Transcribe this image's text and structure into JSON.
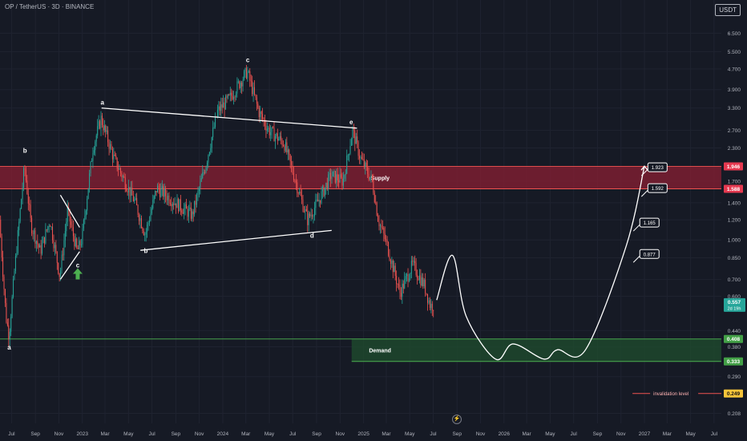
{
  "header": {
    "symbol_line": "OP / TetherUS · 3D · BINANCE"
  },
  "unit_label": "USDT",
  "scroll_icon": "lightning-icon",
  "colors": {
    "background": "#161a25",
    "grid": "#1f2330",
    "up": "#26a69a",
    "down": "#ef5350",
    "supply_fill": "#8a1f33",
    "supply_line": "#ef5350",
    "demand_fill": "#1f4d2e",
    "demand_line": "#4caf50",
    "invalidation": "#ef5350",
    "projection": "#ffffff"
  },
  "chart_data": {
    "type": "candlestick",
    "y_scale": "log",
    "ylim": [
      0.19,
      7.7
    ],
    "xlim": [
      "2022-06-01",
      "2027-07-20"
    ],
    "y_ticks": [
      "6.500",
      "5.500",
      "4.700",
      "3.900",
      "3.300",
      "2.700",
      "2.300",
      "1.700",
      "1.400",
      "1.200",
      "1.000",
      "0.850",
      "0.700",
      "0.600",
      "0.440",
      "0.380",
      "0.290",
      "0.208"
    ],
    "x_ticks": [
      {
        "date": "2022-07-01",
        "label": "Jul"
      },
      {
        "date": "2022-09-01",
        "label": "Sep"
      },
      {
        "date": "2022-11-01",
        "label": "Nov"
      },
      {
        "date": "2023-01-01",
        "label": "2023"
      },
      {
        "date": "2023-03-01",
        "label": "Mar"
      },
      {
        "date": "2023-05-01",
        "label": "May"
      },
      {
        "date": "2023-07-01",
        "label": "Jul"
      },
      {
        "date": "2023-09-01",
        "label": "Sep"
      },
      {
        "date": "2023-11-01",
        "label": "Nov"
      },
      {
        "date": "2024-01-01",
        "label": "2024"
      },
      {
        "date": "2024-03-01",
        "label": "Mar"
      },
      {
        "date": "2024-05-01",
        "label": "May"
      },
      {
        "date": "2024-07-01",
        "label": "Jul"
      },
      {
        "date": "2024-09-01",
        "label": "Sep"
      },
      {
        "date": "2024-11-01",
        "label": "Nov"
      },
      {
        "date": "2025-01-01",
        "label": "2025"
      },
      {
        "date": "2025-03-01",
        "label": "Mar"
      },
      {
        "date": "2025-05-01",
        "label": "May"
      },
      {
        "date": "2025-07-01",
        "label": "Jul"
      },
      {
        "date": "2025-09-01",
        "label": "Sep"
      },
      {
        "date": "2025-11-01",
        "label": "Nov"
      },
      {
        "date": "2026-01-01",
        "label": "2026"
      },
      {
        "date": "2026-03-01",
        "label": "Mar"
      },
      {
        "date": "2026-05-01",
        "label": "May"
      },
      {
        "date": "2026-07-01",
        "label": "Jul"
      },
      {
        "date": "2026-09-01",
        "label": "Sep"
      },
      {
        "date": "2026-11-01",
        "label": "Nov"
      },
      {
        "date": "2027-01-01",
        "label": "2027"
      },
      {
        "date": "2027-03-01",
        "label": "Mar"
      },
      {
        "date": "2027-05-01",
        "label": "May"
      },
      {
        "date": "2027-07-01",
        "label": "Jul"
      }
    ],
    "price_path": [
      {
        "date": "2022-06-01",
        "price": 1.2
      },
      {
        "date": "2022-06-18",
        "price": 0.5
      },
      {
        "date": "2022-06-26",
        "price": 0.42
      },
      {
        "date": "2022-07-10",
        "price": 0.75
      },
      {
        "date": "2022-08-05",
        "price": 1.95
      },
      {
        "date": "2022-08-22",
        "price": 1.15
      },
      {
        "date": "2022-09-15",
        "price": 0.9
      },
      {
        "date": "2022-10-10",
        "price": 1.2
      },
      {
        "date": "2022-11-05",
        "price": 0.72
      },
      {
        "date": "2022-11-25",
        "price": 1.3
      },
      {
        "date": "2022-12-20",
        "price": 0.9
      },
      {
        "date": "2023-01-01",
        "price": 1.0
      },
      {
        "date": "2023-01-30",
        "price": 2.3
      },
      {
        "date": "2023-02-20",
        "price": 3.0
      },
      {
        "date": "2023-03-25",
        "price": 2.1
      },
      {
        "date": "2023-05-20",
        "price": 1.4
      },
      {
        "date": "2023-06-15",
        "price": 1.05
      },
      {
        "date": "2023-07-15",
        "price": 1.6
      },
      {
        "date": "2023-08-20",
        "price": 1.45
      },
      {
        "date": "2023-10-15",
        "price": 1.25
      },
      {
        "date": "2023-11-20",
        "price": 2.0
      },
      {
        "date": "2023-12-20",
        "price": 3.2
      },
      {
        "date": "2024-01-20",
        "price": 3.6
      },
      {
        "date": "2024-03-06",
        "price": 4.6
      },
      {
        "date": "2024-04-05",
        "price": 3.2
      },
      {
        "date": "2024-05-01",
        "price": 2.7
      },
      {
        "date": "2024-06-10",
        "price": 2.4
      },
      {
        "date": "2024-07-10",
        "price": 1.7
      },
      {
        "date": "2024-08-10",
        "price": 1.2
      },
      {
        "date": "2024-09-10",
        "price": 1.45
      },
      {
        "date": "2024-10-10",
        "price": 1.8
      },
      {
        "date": "2024-11-10",
        "price": 1.7
      },
      {
        "date": "2024-12-05",
        "price": 2.7
      },
      {
        "date": "2024-12-25",
        "price": 2.1
      },
      {
        "date": "2025-01-25",
        "price": 1.7
      },
      {
        "date": "2025-02-10",
        "price": 1.2
      },
      {
        "date": "2025-03-05",
        "price": 0.95
      },
      {
        "date": "2025-04-07",
        "price": 0.62
      },
      {
        "date": "2025-05-10",
        "price": 0.8
      },
      {
        "date": "2025-06-10",
        "price": 0.66
      },
      {
        "date": "2025-06-25",
        "price": 0.55
      },
      {
        "date": "2025-07-02",
        "price": 0.557
      }
    ],
    "last_price": {
      "value": "0.557",
      "countdown": "2d 19h"
    },
    "zones": [
      {
        "name": "Supply",
        "from": 1.588,
        "to": 1.946,
        "label_date": "2025-01-20",
        "end_date": "2027-07-20"
      },
      {
        "name": "Demand",
        "from": 0.333,
        "to": 0.408,
        "start_date": "2024-12-01",
        "label_date": "2025-01-15",
        "end_date": "2027-07-20"
      }
    ],
    "price_badges": [
      {
        "value": "1.946",
        "kind": "supply"
      },
      {
        "value": "1.588",
        "kind": "supply"
      },
      {
        "value": "0.408",
        "kind": "demand"
      },
      {
        "value": "0.333",
        "kind": "demand"
      },
      {
        "value": "0.249",
        "kind": "invalidation"
      }
    ],
    "invalidation": {
      "label": "invalidation level",
      "price": 0.249,
      "start_date": "2026-12-01",
      "end_date": "2027-07-05"
    },
    "wave_labels": [
      {
        "text": "a",
        "date": "2022-06-25",
        "price": 0.37
      },
      {
        "text": "b",
        "date": "2022-08-05",
        "price": 2.2
      },
      {
        "text": "c",
        "date": "2022-12-20",
        "price": 0.78
      },
      {
        "text": "a",
        "date": "2023-02-22",
        "price": 3.4
      },
      {
        "text": "b",
        "date": "2023-06-15",
        "price": 0.89
      },
      {
        "text": "c",
        "date": "2024-03-06",
        "price": 5.0
      },
      {
        "text": "d",
        "date": "2024-08-20",
        "price": 1.02
      },
      {
        "text": "e",
        "date": "2024-11-30",
        "price": 2.85
      }
    ],
    "trend_lines": [
      {
        "from": {
          "date": "2023-02-20",
          "price": 3.3
        },
        "to": {
          "date": "2024-12-15",
          "price": 2.75
        }
      },
      {
        "from": {
          "date": "2023-06-01",
          "price": 0.91
        },
        "to": {
          "date": "2024-10-10",
          "price": 1.09
        }
      },
      {
        "from": {
          "date": "2022-11-05",
          "price": 1.5
        },
        "to": {
          "date": "2022-12-25",
          "price": 1.12
        }
      },
      {
        "from": {
          "date": "2022-11-05",
          "price": 0.7
        },
        "to": {
          "date": "2022-12-25",
          "price": 0.9
        }
      }
    ],
    "projection_path": [
      {
        "date": "2025-07-10",
        "price": 0.58
      },
      {
        "date": "2025-08-20",
        "price": 0.87
      },
      {
        "date": "2025-09-25",
        "price": 0.5
      },
      {
        "date": "2025-12-10",
        "price": 0.34
      },
      {
        "date": "2026-01-25",
        "price": 0.39
      },
      {
        "date": "2026-04-15",
        "price": 0.34
      },
      {
        "date": "2026-05-20",
        "price": 0.37
      },
      {
        "date": "2026-08-01",
        "price": 0.37
      },
      {
        "date": "2026-11-15",
        "price": 0.95
      },
      {
        "date": "2027-01-01",
        "price": 1.95
      }
    ],
    "targets": [
      {
        "label": "1.923",
        "price": 1.923,
        "date": "2027-01-10"
      },
      {
        "label": "1.592",
        "price": 1.592,
        "date": "2027-01-10"
      },
      {
        "label": "1.165",
        "price": 1.165,
        "date": "2026-12-20"
      },
      {
        "label": "0.877",
        "price": 0.877,
        "date": "2026-12-20"
      }
    ],
    "signal_arrow": {
      "direction": "up",
      "date": "2022-12-20",
      "price": 0.72
    }
  }
}
